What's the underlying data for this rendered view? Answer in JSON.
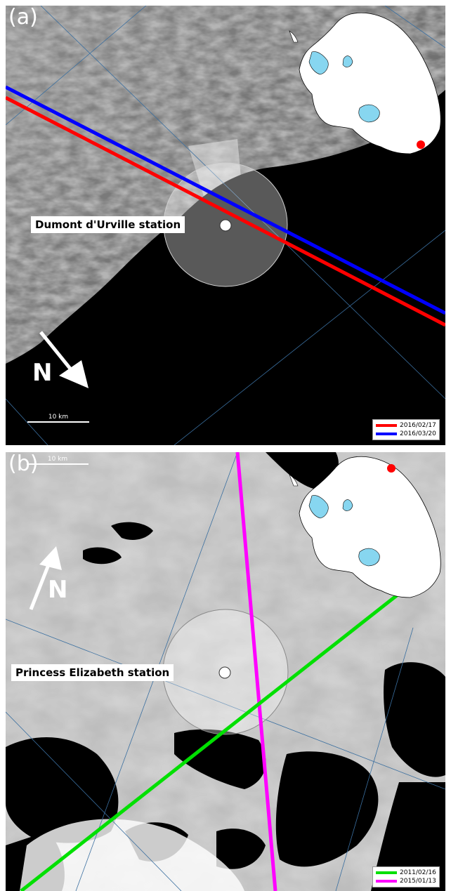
{
  "panel_a": {
    "letter": "(a)",
    "station_label": "Dumont d'Urville station",
    "north_label": "N",
    "scale_label": "10 km",
    "legend": [
      {
        "label": "2016/02/17",
        "color": "#ff0000"
      },
      {
        "label": "2016/03/20",
        "color": "#0000ff"
      }
    ]
  },
  "panel_b": {
    "letter": "(b)",
    "station_label": "Princess Elizabeth station",
    "north_label": "N",
    "scale_label": "10 km",
    "legend": [
      {
        "label": "2011/02/16",
        "color": "#00e000"
      },
      {
        "label": "2015/01/13",
        "color": "#ff00ff"
      }
    ]
  },
  "colors": {
    "ice_shelf": "#87d6f0",
    "station_marker": "#ff0000",
    "graticule": "#3a6fa0"
  }
}
